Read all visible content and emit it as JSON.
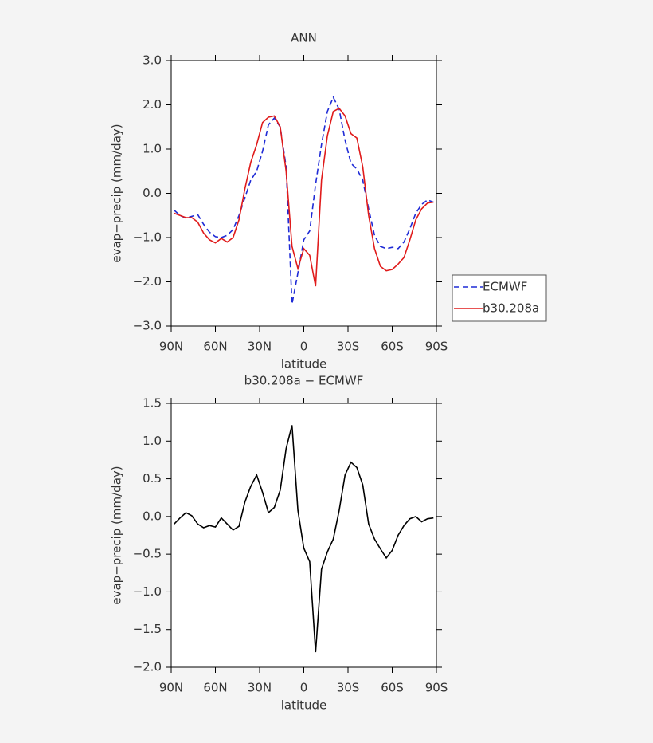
{
  "chart_data": [
    {
      "type": "line",
      "title": "ANN",
      "x_label": "latitude",
      "y_label": "evap−precip (mm/day)",
      "x": [
        88,
        84,
        80,
        76,
        72,
        68,
        64,
        60,
        56,
        52,
        48,
        44,
        40,
        36,
        32,
        28,
        24,
        20,
        16,
        12,
        8,
        4,
        0,
        -4,
        -8,
        -12,
        -16,
        -20,
        -24,
        -28,
        -32,
        -36,
        -40,
        -44,
        -48,
        -52,
        -56,
        -60,
        -64,
        -68,
        -72,
        -76,
        -80,
        -84,
        -88
      ],
      "series": [
        {
          "name": "ECMWF",
          "color": "#1f2bd6",
          "line_style": "dashed",
          "values": [
            -0.38,
            -0.5,
            -0.56,
            -0.52,
            -0.48,
            -0.7,
            -0.88,
            -0.98,
            -1.0,
            -0.95,
            -0.82,
            -0.5,
            -0.1,
            0.3,
            0.5,
            0.95,
            1.55,
            1.7,
            1.5,
            0.6,
            -2.5,
            -1.8,
            -1.05,
            -0.85,
            0.2,
            1.1,
            1.85,
            2.17,
            1.9,
            1.2,
            0.68,
            0.55,
            0.3,
            -0.35,
            -0.95,
            -1.2,
            -1.25,
            -1.22,
            -1.25,
            -1.1,
            -0.8,
            -0.45,
            -0.25,
            -0.15,
            -0.2
          ]
        },
        {
          "name": "b30.208a",
          "color": "#e01b1b",
          "line_style": "solid",
          "values": [
            -0.45,
            -0.5,
            -0.55,
            -0.55,
            -0.65,
            -0.9,
            -1.05,
            -1.12,
            -1.02,
            -1.1,
            -1.0,
            -0.6,
            0.1,
            0.7,
            1.1,
            1.6,
            1.72,
            1.75,
            1.5,
            0.5,
            -1.2,
            -1.7,
            -1.25,
            -1.4,
            -2.1,
            0.3,
            1.3,
            1.85,
            1.92,
            1.75,
            1.35,
            1.25,
            0.6,
            -0.5,
            -1.25,
            -1.65,
            -1.75,
            -1.72,
            -1.6,
            -1.45,
            -1.05,
            -0.6,
            -0.35,
            -0.22,
            -0.2
          ]
        }
      ],
      "xlim": [
        90,
        -90
      ],
      "xticks": [
        {
          "value": 90,
          "label": "90N"
        },
        {
          "value": 60,
          "label": "60N"
        },
        {
          "value": 30,
          "label": "30N"
        },
        0,
        {
          "value": -30,
          "label": "30S"
        },
        {
          "value": -60,
          "label": "60S"
        },
        {
          "value": -90,
          "label": "90S"
        }
      ],
      "ylim": [
        -3,
        3
      ],
      "yticks": [
        {
          "value": 3,
          "label": "3.0"
        },
        {
          "value": 2,
          "label": "2.0"
        },
        {
          "value": 1,
          "label": "1.0"
        },
        {
          "value": 0,
          "label": "0.0"
        },
        {
          "value": -1,
          "label": "−1.0"
        },
        {
          "value": -2,
          "label": "−2.0"
        },
        {
          "value": -3,
          "label": "−3.0"
        }
      ],
      "legend": "right"
    },
    {
      "type": "line",
      "title": "b30.208a − ECMWF",
      "x_label": "latitude",
      "y_label": "evap−precip (mm/day)",
      "x": [
        88,
        84,
        80,
        76,
        72,
        68,
        64,
        60,
        56,
        52,
        48,
        44,
        40,
        36,
        32,
        28,
        24,
        20,
        16,
        12,
        8,
        4,
        0,
        -4,
        -8,
        -12,
        -16,
        -20,
        -24,
        -28,
        -32,
        -36,
        -40,
        -44,
        -48,
        -52,
        -56,
        -60,
        -64,
        -68,
        -72,
        -76,
        -80,
        -84,
        -88
      ],
      "values": [
        -0.1,
        -0.02,
        0.05,
        0.01,
        -0.1,
        -0.15,
        -0.12,
        -0.14,
        -0.02,
        -0.1,
        -0.18,
        -0.13,
        0.19,
        0.4,
        0.55,
        0.32,
        0.05,
        0.12,
        0.35,
        0.9,
        1.21,
        0.08,
        -0.42,
        -0.6,
        -1.8,
        -0.7,
        -0.47,
        -0.3,
        0.08,
        0.55,
        0.72,
        0.65,
        0.42,
        -0.1,
        -0.3,
        -0.43,
        -0.55,
        -0.45,
        -0.25,
        -0.12,
        -0.03,
        0.0,
        -0.07,
        -0.03,
        -0.02
      ],
      "color": "#000000",
      "line_style": "solid",
      "xlim": [
        90,
        -90
      ],
      "xticks": [
        {
          "value": 90,
          "label": "90N"
        },
        {
          "value": 60,
          "label": "60N"
        },
        {
          "value": 30,
          "label": "30N"
        },
        0,
        {
          "value": -30,
          "label": "30S"
        },
        {
          "value": -60,
          "label": "60S"
        },
        {
          "value": -90,
          "label": "90S"
        }
      ],
      "ylim": [
        -2,
        1.5
      ],
      "yticks": [
        {
          "value": 1.5,
          "label": "1.5"
        },
        {
          "value": 1,
          "label": "1.0"
        },
        {
          "value": 0.5,
          "label": "0.5"
        },
        {
          "value": 0,
          "label": "0.0"
        },
        {
          "value": -0.5,
          "label": "−0.5"
        },
        {
          "value": -1,
          "label": "−1.0"
        },
        {
          "value": -1.5,
          "label": "−1.5"
        },
        {
          "value": -2,
          "label": "−2.0"
        }
      ]
    }
  ]
}
